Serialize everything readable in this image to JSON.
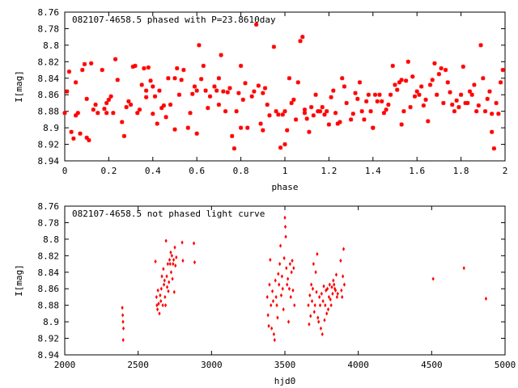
{
  "chart_data": [
    {
      "type": "scatter",
      "title": "082107-4658.5 phased with P=23.8610day",
      "xlabel": "phase",
      "ylabel": "I[mag]",
      "xlim": [
        0,
        2
      ],
      "ylim": [
        8.94,
        8.76
      ],
      "y_inverted": true,
      "grid": false,
      "marker_color": "#ff0000",
      "x_ticks": [
        "0",
        "0.2",
        "0.4",
        "0.6",
        "0.8",
        "1",
        "1.2",
        "1.4",
        "1.6",
        "1.8",
        "2"
      ],
      "y_ticks": [
        "8.76",
        "8.78",
        "8.8",
        "8.82",
        "8.84",
        "8.86",
        "8.88",
        "8.9",
        "8.92",
        "8.94"
      ],
      "points": [
        [
          0.0,
          8.882
        ],
        [
          0.01,
          8.856
        ],
        [
          0.02,
          8.832
        ],
        [
          0.03,
          8.905
        ],
        [
          0.04,
          8.913
        ],
        [
          0.05,
          8.845
        ],
        [
          0.06,
          8.882
        ],
        [
          0.07,
          8.907
        ],
        [
          0.08,
          8.83
        ],
        [
          0.09,
          8.823
        ],
        [
          0.1,
          8.865
        ],
        [
          0.1,
          8.912
        ],
        [
          0.11,
          8.915
        ],
        [
          0.12,
          8.822
        ],
        [
          0.13,
          8.878
        ],
        [
          0.14,
          8.872
        ],
        [
          0.15,
          8.882
        ],
        [
          0.17,
          8.83
        ],
        [
          0.18,
          8.877
        ],
        [
          0.19,
          8.882
        ],
        [
          0.19,
          8.87
        ],
        [
          0.2,
          8.866
        ],
        [
          0.21,
          8.862
        ],
        [
          0.22,
          8.882
        ],
        [
          0.23,
          8.817
        ],
        [
          0.24,
          8.842
        ],
        [
          0.26,
          8.893
        ],
        [
          0.27,
          8.91
        ],
        [
          0.28,
          8.875
        ],
        [
          0.29,
          8.868
        ],
        [
          0.3,
          8.872
        ],
        [
          0.31,
          8.826
        ],
        [
          0.32,
          8.825
        ],
        [
          0.33,
          8.882
        ],
        [
          0.34,
          8.878
        ],
        [
          0.35,
          8.848
        ],
        [
          0.36,
          8.828
        ],
        [
          0.37,
          8.855
        ],
        [
          0.37,
          8.863
        ],
        [
          0.38,
          8.827
        ],
        [
          0.39,
          8.843
        ],
        [
          0.4,
          8.85
        ],
        [
          0.41,
          8.862
        ],
        [
          0.42,
          8.895
        ],
        [
          0.43,
          8.855
        ],
        [
          0.44,
          8.876
        ],
        [
          0.45,
          8.873
        ],
        [
          0.46,
          8.887
        ],
        [
          0.47,
          8.84
        ],
        [
          0.48,
          8.872
        ],
        [
          0.5,
          8.902
        ],
        [
          0.5,
          8.84
        ],
        [
          0.51,
          8.828
        ],
        [
          0.52,
          8.86
        ],
        [
          0.53,
          8.842
        ],
        [
          0.54,
          8.83
        ],
        [
          0.56,
          8.9
        ],
        [
          0.57,
          8.882
        ],
        [
          0.58,
          8.859
        ],
        [
          0.59,
          8.85
        ],
        [
          0.6,
          8.855
        ],
        [
          0.6,
          8.907
        ],
        [
          0.61,
          8.8
        ],
        [
          0.62,
          8.841
        ],
        [
          0.63,
          8.825
        ],
        [
          0.64,
          8.855
        ],
        [
          0.65,
          8.876
        ],
        [
          0.66,
          8.862
        ],
        [
          0.68,
          8.85
        ],
        [
          0.69,
          8.855
        ],
        [
          0.7,
          8.84
        ],
        [
          0.71,
          8.812
        ],
        [
          0.72,
          8.856
        ],
        [
          0.73,
          8.88
        ],
        [
          0.74,
          8.857
        ],
        [
          0.75,
          8.852
        ],
        [
          0.76,
          8.91
        ],
        [
          0.77,
          8.925
        ],
        [
          0.78,
          8.88
        ],
        [
          0.79,
          8.858
        ],
        [
          0.8,
          8.825
        ],
        [
          0.81,
          8.866
        ],
        [
          0.82,
          8.846
        ],
        [
          0.83,
          8.9
        ],
        [
          0.85,
          8.862
        ],
        [
          0.86,
          8.856
        ],
        [
          0.87,
          8.775
        ],
        [
          0.88,
          8.849
        ],
        [
          0.89,
          8.895
        ],
        [
          0.9,
          8.903
        ],
        [
          0.91,
          8.852
        ],
        [
          0.92,
          8.872
        ],
        [
          0.93,
          8.885
        ],
        [
          0.95,
          8.802
        ],
        [
          0.96,
          8.88
        ],
        [
          0.97,
          8.884
        ],
        [
          0.98,
          8.924
        ],
        [
          0.99,
          8.884
        ],
        [
          1.0,
          8.92
        ],
        [
          1.01,
          8.903
        ],
        [
          1.02,
          8.84
        ],
        [
          1.03,
          8.87
        ],
        [
          1.04,
          8.866
        ],
        [
          1.05,
          8.89
        ],
        [
          1.06,
          8.845
        ],
        [
          1.07,
          8.795
        ],
        [
          1.08,
          8.79
        ],
        [
          1.09,
          8.882
        ],
        [
          1.1,
          8.889
        ],
        [
          1.11,
          8.905
        ],
        [
          1.12,
          8.875
        ],
        [
          1.13,
          8.885
        ],
        [
          1.14,
          8.86
        ],
        [
          1.15,
          8.88
        ],
        [
          1.16,
          8.88
        ],
        [
          1.17,
          8.875
        ],
        [
          1.18,
          8.884
        ],
        [
          1.19,
          8.88
        ],
        [
          1.2,
          8.896
        ],
        [
          1.21,
          8.863
        ],
        [
          1.22,
          8.855
        ],
        [
          1.23,
          8.882
        ],
        [
          1.24,
          8.895
        ],
        [
          1.25,
          8.893
        ],
        [
          1.26,
          8.84
        ],
        [
          1.27,
          8.85
        ],
        [
          1.28,
          8.87
        ],
        [
          1.3,
          8.89
        ],
        [
          1.31,
          8.883
        ],
        [
          1.32,
          8.858
        ],
        [
          1.33,
          8.865
        ],
        [
          1.34,
          8.845
        ],
        [
          1.35,
          8.88
        ],
        [
          1.36,
          8.89
        ],
        [
          1.37,
          8.868
        ],
        [
          1.38,
          8.86
        ],
        [
          1.39,
          8.88
        ],
        [
          1.4,
          8.9
        ],
        [
          1.41,
          8.86
        ],
        [
          1.42,
          8.868
        ],
        [
          1.43,
          8.86
        ],
        [
          1.44,
          8.868
        ],
        [
          1.45,
          8.882
        ],
        [
          1.46,
          8.878
        ],
        [
          1.47,
          8.872
        ],
        [
          1.48,
          8.86
        ],
        [
          1.49,
          8.825
        ],
        [
          1.5,
          8.848
        ],
        [
          1.51,
          8.854
        ],
        [
          1.52,
          8.845
        ],
        [
          1.53,
          8.896
        ],
        [
          1.54,
          8.88
        ],
        [
          1.55,
          8.843
        ],
        [
          1.56,
          8.82
        ],
        [
          1.57,
          8.875
        ],
        [
          1.58,
          8.838
        ],
        [
          1.59,
          8.862
        ],
        [
          1.6,
          8.856
        ],
        [
          1.61,
          8.86
        ],
        [
          1.62,
          8.85
        ],
        [
          1.63,
          8.873
        ],
        [
          1.64,
          8.866
        ],
        [
          1.65,
          8.892
        ],
        [
          1.66,
          8.848
        ],
        [
          1.67,
          8.842
        ],
        [
          1.68,
          8.822
        ],
        [
          1.69,
          8.86
        ],
        [
          1.7,
          8.835
        ],
        [
          1.71,
          8.828
        ],
        [
          1.72,
          8.87
        ],
        [
          1.73,
          8.83
        ],
        [
          1.74,
          8.845
        ],
        [
          1.75,
          8.857
        ],
        [
          1.76,
          8.872
        ],
        [
          1.77,
          8.88
        ],
        [
          1.78,
          8.867
        ],
        [
          1.79,
          8.875
        ],
        [
          1.8,
          8.86
        ],
        [
          1.81,
          8.826
        ],
        [
          1.82,
          8.87
        ],
        [
          1.83,
          8.87
        ],
        [
          1.84,
          8.856
        ],
        [
          1.85,
          8.86
        ],
        [
          1.86,
          8.848
        ],
        [
          1.87,
          8.88
        ],
        [
          1.88,
          8.873
        ],
        [
          1.89,
          8.8
        ],
        [
          1.9,
          8.84
        ],
        [
          1.91,
          8.88
        ],
        [
          1.92,
          8.865
        ],
        [
          1.93,
          8.856
        ],
        [
          1.94,
          8.905
        ],
        [
          1.95,
          8.925
        ],
        [
          1.96,
          8.87
        ],
        [
          1.97,
          8.883
        ],
        [
          1.98,
          8.845
        ],
        [
          1.99,
          8.83
        ],
        [
          0.05,
          8.885
        ],
        [
          0.4,
          8.883
        ],
        [
          0.8,
          8.9
        ],
        [
          1.0,
          8.88
        ],
        [
          1.4,
          8.9
        ],
        [
          1.94,
          8.883
        ],
        [
          1.53,
          8.842
        ],
        [
          0.7,
          8.872
        ],
        [
          0.9,
          8.858
        ],
        [
          1.09,
          8.878
        ]
      ]
    },
    {
      "type": "scatter",
      "title": "082107-4658.5 not phased light curve",
      "xlabel": "hjd0",
      "ylabel": "I[mag]",
      "xlim": [
        2000,
        5000
      ],
      "ylim": [
        8.94,
        8.76
      ],
      "y_inverted": true,
      "grid": false,
      "marker_color": "#ff0000",
      "x_ticks": [
        "2000",
        "2500",
        "3000",
        "3500",
        "4000",
        "4500",
        "5000"
      ],
      "y_ticks": [
        "8.76",
        "8.78",
        "8.8",
        "8.82",
        "8.84",
        "8.86",
        "8.88",
        "8.9",
        "8.92",
        "8.94"
      ],
      "points": [
        [
          2392,
          8.883
        ],
        [
          2395,
          8.892
        ],
        [
          2397,
          8.9
        ],
        [
          2398,
          8.922
        ],
        [
          2400,
          8.908
        ],
        [
          2618,
          8.827
        ],
        [
          2625,
          8.87
        ],
        [
          2628,
          8.88
        ],
        [
          2632,
          8.885
        ],
        [
          2635,
          8.862
        ],
        [
          2640,
          8.878
        ],
        [
          2645,
          8.89
        ],
        [
          2650,
          8.868
        ],
        [
          2655,
          8.875
        ],
        [
          2658,
          8.86
        ],
        [
          2662,
          8.845
        ],
        [
          2668,
          8.88
        ],
        [
          2672,
          8.836
        ],
        [
          2676,
          8.855
        ],
        [
          2680,
          8.85
        ],
        [
          2683,
          8.87
        ],
        [
          2687,
          8.88
        ],
        [
          2690,
          8.802
        ],
        [
          2695,
          8.845
        ],
        [
          2698,
          8.858
        ],
        [
          2702,
          8.83
        ],
        [
          2706,
          8.863
        ],
        [
          2710,
          8.852
        ],
        [
          2714,
          8.825
        ],
        [
          2718,
          8.83
        ],
        [
          2722,
          8.816
        ],
        [
          2725,
          8.84
        ],
        [
          2730,
          8.82
        ],
        [
          2734,
          8.848
        ],
        [
          2738,
          8.83
        ],
        [
          2742,
          8.825
        ],
        [
          2746,
          8.864
        ],
        [
          2750,
          8.81
        ],
        [
          2754,
          8.832
        ],
        [
          2760,
          8.822
        ],
        [
          2800,
          8.804
        ],
        [
          2805,
          8.826
        ],
        [
          2880,
          8.805
        ],
        [
          2885,
          8.828
        ],
        [
          3380,
          8.87
        ],
        [
          3385,
          8.892
        ],
        [
          3390,
          8.905
        ],
        [
          3395,
          8.855
        ],
        [
          3400,
          8.825
        ],
        [
          3405,
          8.88
        ],
        [
          3410,
          8.908
        ],
        [
          3415,
          8.863
        ],
        [
          3420,
          8.875
        ],
        [
          3425,
          8.915
        ],
        [
          3430,
          8.922
        ],
        [
          3435,
          8.85
        ],
        [
          3440,
          8.87
        ],
        [
          3445,
          8.88
        ],
        [
          3450,
          8.895
        ],
        [
          3455,
          8.842
        ],
        [
          3460,
          8.855
        ],
        [
          3465,
          8.83
        ],
        [
          3470,
          8.808
        ],
        [
          3475,
          8.868
        ],
        [
          3480,
          8.845
        ],
        [
          3485,
          8.86
        ],
        [
          3490,
          8.885
        ],
        [
          3495,
          8.823
        ],
        [
          3500,
          8.774
        ],
        [
          3503,
          8.785
        ],
        [
          3506,
          8.797
        ],
        [
          3510,
          8.835
        ],
        [
          3515,
          8.855
        ],
        [
          3520,
          8.848
        ],
        [
          3525,
          8.9
        ],
        [
          3530,
          8.86
        ],
        [
          3535,
          8.83
        ],
        [
          3540,
          8.87
        ],
        [
          3545,
          8.84
        ],
        [
          3550,
          8.826
        ],
        [
          3555,
          8.862
        ],
        [
          3560,
          8.835
        ],
        [
          3565,
          8.88
        ],
        [
          3660,
          8.88
        ],
        [
          3665,
          8.903
        ],
        [
          3670,
          8.868
        ],
        [
          3675,
          8.893
        ],
        [
          3680,
          8.855
        ],
        [
          3685,
          8.875
        ],
        [
          3690,
          8.86
        ],
        [
          3695,
          8.83
        ],
        [
          3700,
          8.888
        ],
        [
          3705,
          8.88
        ],
        [
          3710,
          8.84
        ],
        [
          3715,
          8.864
        ],
        [
          3720,
          8.818
        ],
        [
          3725,
          8.895
        ],
        [
          3730,
          8.9
        ],
        [
          3735,
          8.87
        ],
        [
          3740,
          8.88
        ],
        [
          3745,
          8.908
        ],
        [
          3750,
          8.866
        ],
        [
          3755,
          8.915
        ],
        [
          3760,
          8.875
        ],
        [
          3765,
          8.857
        ],
        [
          3770,
          8.898
        ],
        [
          3775,
          8.88
        ],
        [
          3780,
          8.862
        ],
        [
          3785,
          8.89
        ],
        [
          3790,
          8.86
        ],
        [
          3795,
          8.885
        ],
        [
          3800,
          8.87
        ],
        [
          3805,
          8.855
        ],
        [
          3810,
          8.873
        ],
        [
          3815,
          8.88
        ],
        [
          3820,
          8.858
        ],
        [
          3825,
          8.866
        ],
        [
          3830,
          8.85
        ],
        [
          3835,
          8.855
        ],
        [
          3840,
          8.86
        ],
        [
          3845,
          8.862
        ],
        [
          3850,
          8.843
        ],
        [
          3855,
          8.87
        ],
        [
          3860,
          8.866
        ],
        [
          3880,
          8.826
        ],
        [
          3885,
          8.862
        ],
        [
          3890,
          8.87
        ],
        [
          3895,
          8.845
        ],
        [
          3900,
          8.812
        ],
        [
          3905,
          8.855
        ],
        [
          4510,
          8.848
        ],
        [
          4720,
          8.835
        ],
        [
          4870,
          8.872
        ]
      ]
    }
  ]
}
